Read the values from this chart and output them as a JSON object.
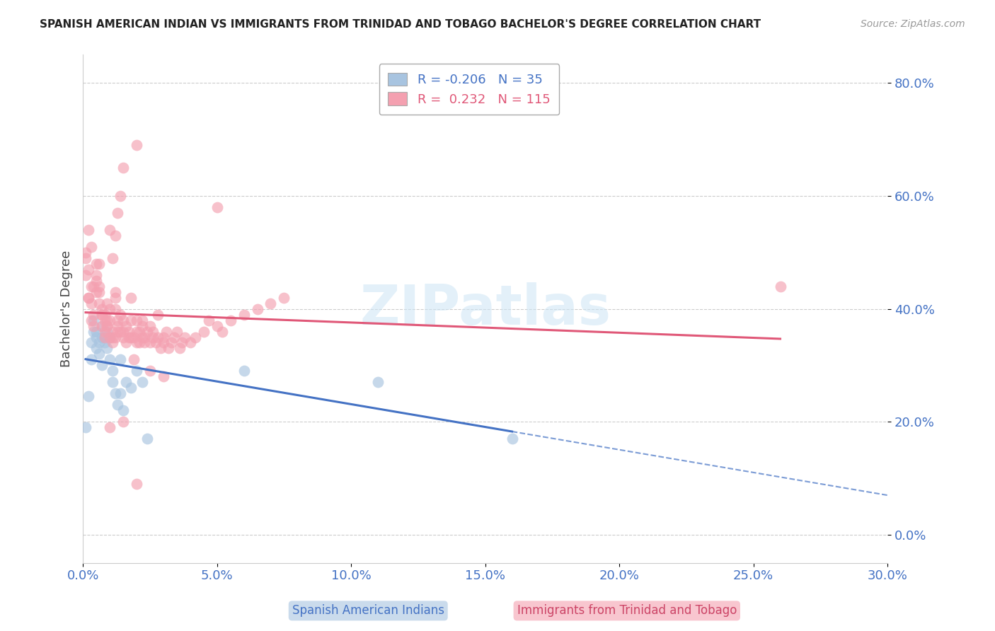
{
  "title": "SPANISH AMERICAN INDIAN VS IMMIGRANTS FROM TRINIDAD AND TOBAGO BACHELOR'S DEGREE CORRELATION CHART",
  "source": "Source: ZipAtlas.com",
  "ylabel": "Bachelor's Degree",
  "legend_label1": "Spanish American Indians",
  "legend_label2": "Immigrants from Trinidad and Tobago",
  "R1": -0.206,
  "N1": 35,
  "R2": 0.232,
  "N2": 115,
  "color1": "#a8c4e0",
  "color2": "#f4a0b0",
  "line_color1": "#4472c4",
  "line_color2": "#e05878",
  "axis_color": "#4472c4",
  "watermark": "ZIPatlas",
  "xlim": [
    0.0,
    0.3
  ],
  "ylim": [
    -0.05,
    0.85
  ],
  "yticks": [
    0.0,
    0.2,
    0.4,
    0.6,
    0.8
  ],
  "xticks": [
    0.0,
    0.05,
    0.1,
    0.15,
    0.2,
    0.25,
    0.3
  ],
  "blue_points_x": [
    0.001,
    0.002,
    0.003,
    0.003,
    0.004,
    0.004,
    0.005,
    0.005,
    0.005,
    0.006,
    0.006,
    0.007,
    0.007,
    0.007,
    0.008,
    0.008,
    0.009,
    0.009,
    0.01,
    0.01,
    0.011,
    0.011,
    0.012,
    0.013,
    0.014,
    0.014,
    0.015,
    0.016,
    0.018,
    0.02,
    0.022,
    0.024,
    0.06,
    0.11,
    0.16
  ],
  "blue_points_y": [
    0.19,
    0.245,
    0.31,
    0.34,
    0.36,
    0.38,
    0.36,
    0.35,
    0.33,
    0.34,
    0.32,
    0.3,
    0.35,
    0.37,
    0.35,
    0.34,
    0.33,
    0.36,
    0.35,
    0.31,
    0.29,
    0.27,
    0.25,
    0.23,
    0.25,
    0.31,
    0.22,
    0.27,
    0.26,
    0.29,
    0.27,
    0.17,
    0.29,
    0.27,
    0.17
  ],
  "pink_points_x": [
    0.001,
    0.001,
    0.002,
    0.002,
    0.003,
    0.003,
    0.003,
    0.004,
    0.004,
    0.005,
    0.005,
    0.005,
    0.006,
    0.006,
    0.006,
    0.007,
    0.007,
    0.007,
    0.008,
    0.008,
    0.008,
    0.009,
    0.009,
    0.009,
    0.01,
    0.01,
    0.01,
    0.011,
    0.011,
    0.011,
    0.012,
    0.012,
    0.012,
    0.013,
    0.013,
    0.013,
    0.014,
    0.014,
    0.015,
    0.015,
    0.015,
    0.016,
    0.016,
    0.017,
    0.017,
    0.018,
    0.018,
    0.019,
    0.019,
    0.02,
    0.02,
    0.02,
    0.021,
    0.021,
    0.022,
    0.022,
    0.023,
    0.023,
    0.024,
    0.025,
    0.025,
    0.026,
    0.026,
    0.027,
    0.028,
    0.028,
    0.029,
    0.03,
    0.03,
    0.031,
    0.032,
    0.033,
    0.034,
    0.035,
    0.036,
    0.037,
    0.038,
    0.04,
    0.042,
    0.045,
    0.047,
    0.05,
    0.052,
    0.055,
    0.06,
    0.065,
    0.07,
    0.075,
    0.001,
    0.002,
    0.002,
    0.003,
    0.004,
    0.005,
    0.006,
    0.007,
    0.008,
    0.009,
    0.01,
    0.011,
    0.012,
    0.013,
    0.014,
    0.015,
    0.02,
    0.025,
    0.03,
    0.015,
    0.01,
    0.02,
    0.022,
    0.018,
    0.012,
    0.26,
    0.05
  ],
  "pink_points_y": [
    0.46,
    0.49,
    0.42,
    0.54,
    0.38,
    0.41,
    0.44,
    0.39,
    0.37,
    0.45,
    0.48,
    0.43,
    0.41,
    0.43,
    0.44,
    0.39,
    0.37,
    0.4,
    0.38,
    0.36,
    0.39,
    0.37,
    0.38,
    0.41,
    0.35,
    0.38,
    0.4,
    0.35,
    0.34,
    0.36,
    0.4,
    0.42,
    0.35,
    0.36,
    0.37,
    0.38,
    0.36,
    0.39,
    0.38,
    0.35,
    0.36,
    0.34,
    0.37,
    0.35,
    0.36,
    0.35,
    0.38,
    0.31,
    0.35,
    0.34,
    0.36,
    0.38,
    0.34,
    0.36,
    0.35,
    0.37,
    0.34,
    0.35,
    0.36,
    0.34,
    0.37,
    0.35,
    0.36,
    0.34,
    0.35,
    0.39,
    0.33,
    0.35,
    0.34,
    0.36,
    0.33,
    0.34,
    0.35,
    0.36,
    0.33,
    0.34,
    0.35,
    0.34,
    0.35,
    0.36,
    0.38,
    0.37,
    0.36,
    0.38,
    0.39,
    0.4,
    0.41,
    0.42,
    0.5,
    0.42,
    0.47,
    0.51,
    0.44,
    0.46,
    0.48,
    0.39,
    0.35,
    0.37,
    0.54,
    0.49,
    0.53,
    0.57,
    0.6,
    0.65,
    0.69,
    0.29,
    0.28,
    0.2,
    0.19,
    0.09,
    0.38,
    0.42,
    0.43,
    0.44,
    0.58
  ]
}
